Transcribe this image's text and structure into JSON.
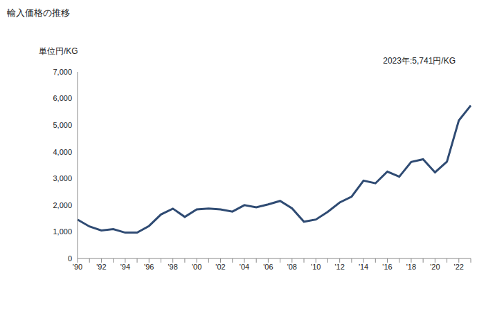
{
  "chart_data": {
    "type": "line",
    "title": "輸入価格の推移",
    "ylabel": "単位円/KG",
    "annotation": "2023年:5,741円/KG",
    "categories": [
      "'90",
      null,
      "'92",
      null,
      "'94",
      null,
      "'96",
      null,
      "'98",
      null,
      "'00",
      null,
      "'02",
      null,
      "'04",
      null,
      "'06",
      null,
      "'08",
      null,
      "'10",
      null,
      "'12",
      null,
      "'14",
      null,
      "'16",
      null,
      "'18",
      null,
      "'20",
      null,
      "'22",
      null
    ],
    "values": [
      1460,
      1200,
      1050,
      1100,
      970,
      970,
      1220,
      1650,
      1870,
      1560,
      1840,
      1870,
      1840,
      1760,
      2000,
      1920,
      2030,
      2160,
      1880,
      1380,
      1460,
      1750,
      2100,
      2320,
      2920,
      2820,
      3260,
      3070,
      3620,
      3720,
      3230,
      3630,
      5180,
      5741
    ],
    "color": "#2f4b73",
    "ylim": [
      0,
      7000
    ],
    "yticks": [
      0,
      {
        "value": 1000,
        "label": "1,000"
      },
      {
        "value": 2000,
        "label": "2,000"
      },
      {
        "value": 3000,
        "label": "3,000"
      },
      {
        "value": 4000,
        "label": "4,000"
      },
      {
        "value": 5000,
        "label": "5,000"
      },
      {
        "value": 6000,
        "label": "6,000"
      },
      {
        "value": 7000,
        "label": "7,000"
      }
    ],
    "grid": false
  }
}
